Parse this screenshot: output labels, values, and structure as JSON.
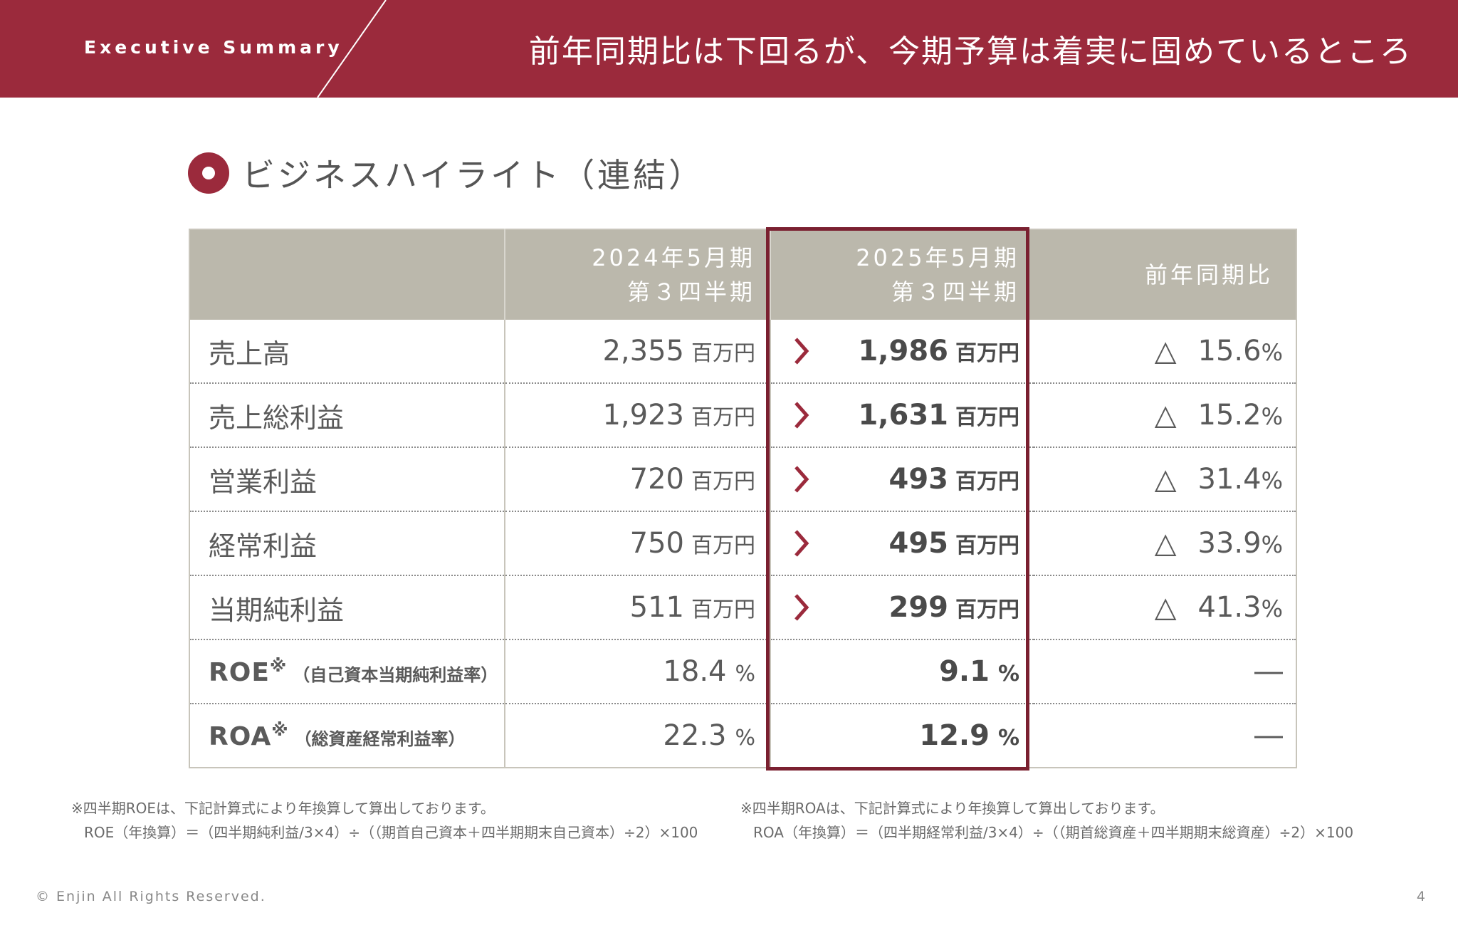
{
  "header": {
    "label": "Executive Summary",
    "title": "前年同期比は下回るが、今期予算は着実に固めているところ",
    "bg_color": "#9b2a3c"
  },
  "section": {
    "title": "ビジネスハイライト（連結）",
    "bullet_icon": "circle-bullet-icon"
  },
  "table": {
    "columns": [
      {
        "line1": "",
        "line2": ""
      },
      {
        "line1": "2024年5月期",
        "line2": "第３四半期"
      },
      {
        "line1": "2025年5月期",
        "line2": "第３四半期"
      },
      {
        "line1": "前年同期比",
        "line2": ""
      }
    ],
    "rows": [
      {
        "label": "売上高",
        "prev": "2,355",
        "prev_unit": "百万円",
        "curr": "1,986",
        "curr_unit": "百万円",
        "change_mark": "△",
        "change": "15.6",
        "change_unit": "%"
      },
      {
        "label": "売上総利益",
        "prev": "1,923",
        "prev_unit": "百万円",
        "curr": "1,631",
        "curr_unit": "百万円",
        "change_mark": "△",
        "change": "15.2",
        "change_unit": "%"
      },
      {
        "label": "営業利益",
        "prev": "720",
        "prev_unit": "百万円",
        "curr": "493",
        "curr_unit": "百万円",
        "change_mark": "△",
        "change": "31.4",
        "change_unit": "%"
      },
      {
        "label": "経常利益",
        "prev": "750",
        "prev_unit": "百万円",
        "curr": "495",
        "curr_unit": "百万円",
        "change_mark": "△",
        "change": "33.9",
        "change_unit": "%"
      },
      {
        "label": "当期純利益",
        "prev": "511",
        "prev_unit": "百万円",
        "curr": "299",
        "curr_unit": "百万円",
        "change_mark": "△",
        "change": "41.3",
        "change_unit": "%"
      }
    ],
    "ratio_rows": [
      {
        "metric": "ROE",
        "mark": "※",
        "desc": "（自己資本当期純利益率）",
        "prev": "18.4",
        "prev_unit": "%",
        "curr": "9.1",
        "curr_unit": "%",
        "change": "―"
      },
      {
        "metric": "ROA",
        "mark": "※",
        "desc": "（総資産経常利益率）",
        "prev": "22.3",
        "prev_unit": "%",
        "curr": "12.9",
        "curr_unit": "%",
        "change": "―"
      }
    ],
    "highlight_color": "#7a2030",
    "header_bg": "#bbb8ac"
  },
  "notes": {
    "left": {
      "line1": "※四半期ROEは、下記計算式により年換算して算出しております。",
      "line2": "ROE（年換算）＝（四半期純利益/3×4）÷（（期首自己資本＋四半期期末自己資本）÷2）×100"
    },
    "right": {
      "line1": "※四半期ROAは、下記計算式により年換算して算出しております。",
      "line2": "ROA（年換算）＝（四半期経常利益/3×4）÷（（期首総資産＋四半期期末総資産）÷2）×100"
    }
  },
  "footer": {
    "copyright": "© Enjin All Rights Reserved.",
    "page": "4"
  }
}
